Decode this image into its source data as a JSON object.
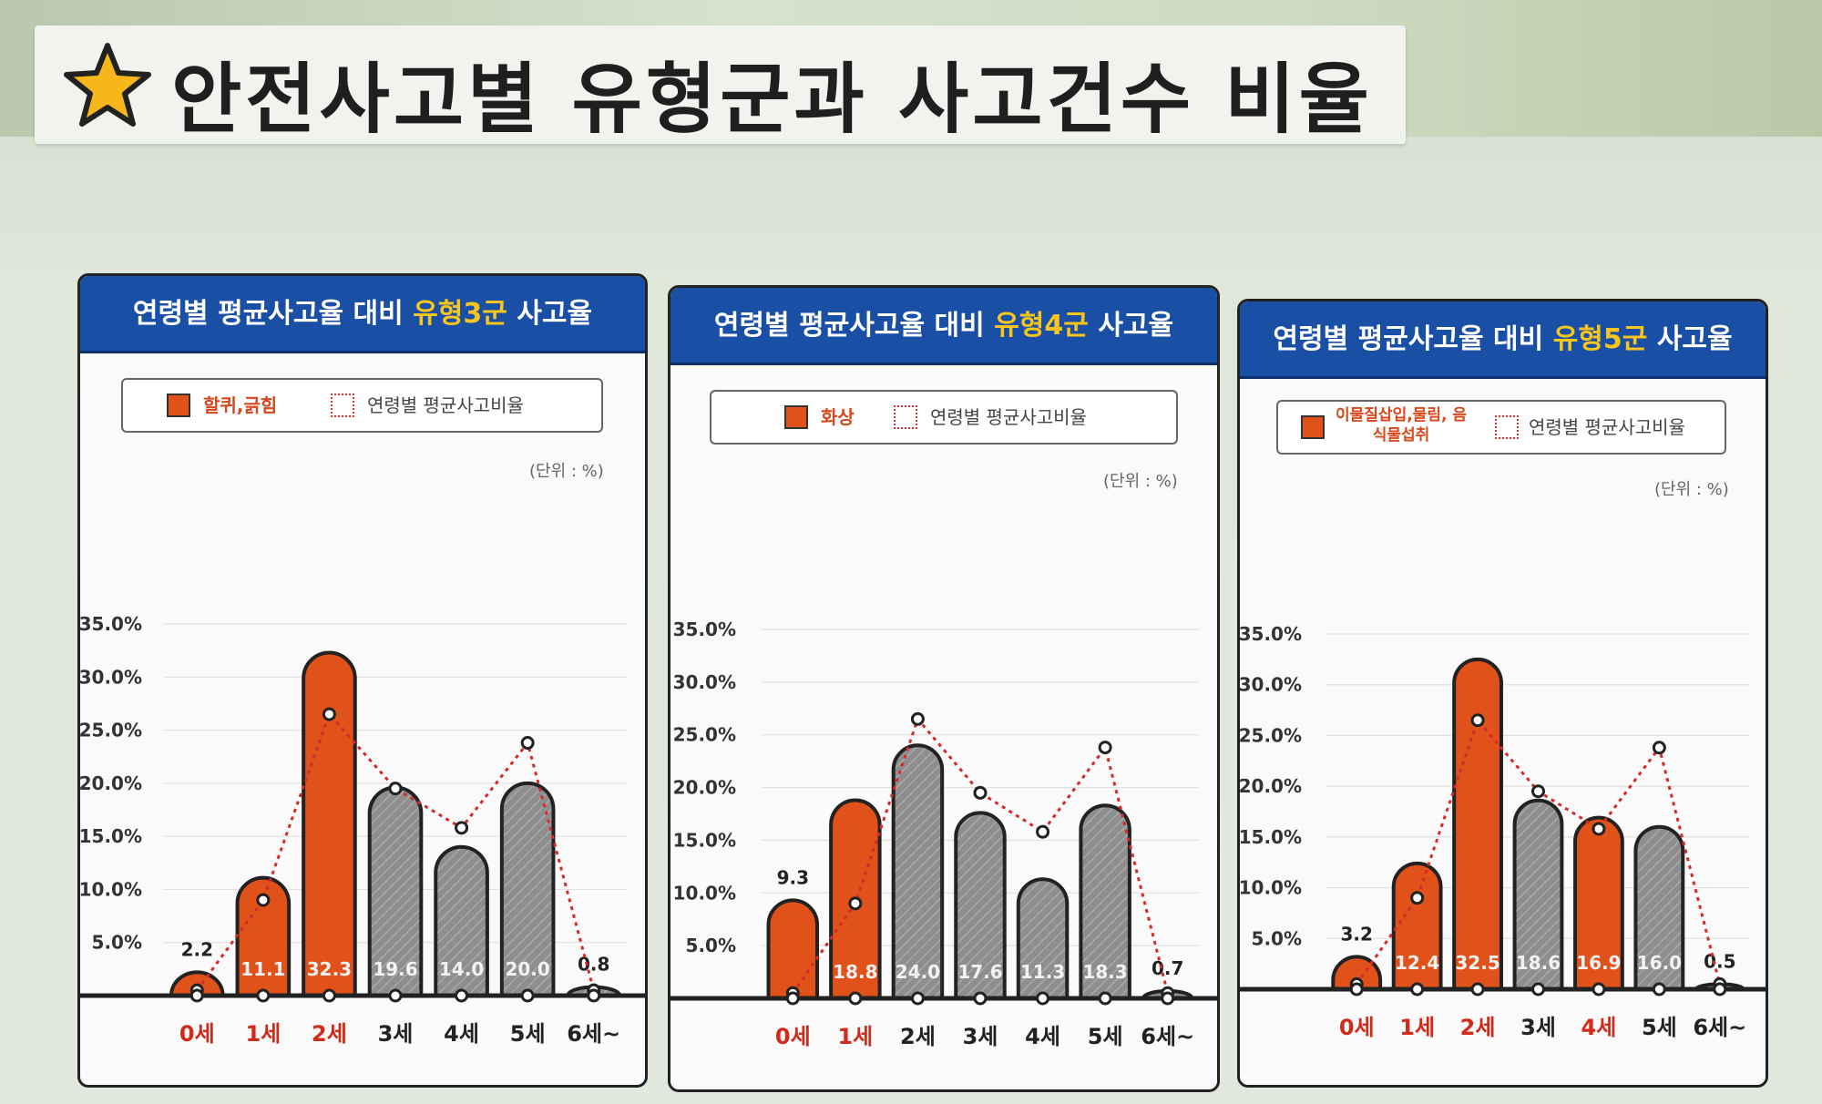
{
  "title": "안전사고별 유형군과 사고건수 비율",
  "colors": {
    "highlight_bar": "#e0521a",
    "other_bar": "#8e8e8e",
    "avg_line": "#d42a2a",
    "header": "#1a4fa6",
    "header_highlight": "#f8c51c"
  },
  "panels": [
    {
      "title_prefix": "연령별 평균사고율 대비 ",
      "title_highlight": "유형3군",
      "title_suffix": " 사고율",
      "legend_series": "할퀴,긁힘",
      "legend_avg": "연령별 평균사고비율",
      "unit": "(단위 : %)"
    },
    {
      "title_prefix": "연령별 평균사고율 대비 ",
      "title_highlight": "유형4군",
      "title_suffix": " 사고율",
      "legend_series": "화상",
      "legend_avg": "연령별 평균사고비율",
      "unit": "(단위 : %)"
    },
    {
      "title_prefix": "연령별 평균사고율 대비 ",
      "title_highlight": "유형5군",
      "title_suffix": " 사고율",
      "legend_series": "이물질삽입,물림, 음식물섭취",
      "legend_avg": "연령별 평균사고비율",
      "unit": "(단위 : %)"
    }
  ],
  "chart_data": [
    {
      "type": "bar",
      "categories": [
        "0세",
        "1세",
        "2세",
        "3세",
        "4세",
        "5세",
        "6세~"
      ],
      "series": [
        {
          "name": "할퀴,긁힘",
          "values": [
            2.2,
            11.1,
            32.3,
            19.6,
            14.0,
            20.0,
            0.8
          ]
        },
        {
          "name": "연령별 평균사고비율",
          "values": [
            0.5,
            9.0,
            26.5,
            19.5,
            15.8,
            23.8,
            0.5
          ]
        }
      ],
      "highlighted_categories": [
        "0세",
        "1세",
        "2세"
      ],
      "y_tick_labels": [
        "5.0%",
        "10.0%",
        "15.0%",
        "20.0%",
        "25.0%",
        "30.0%",
        "35.0%"
      ],
      "ylim": [
        0,
        35
      ],
      "grid": true
    },
    {
      "type": "bar",
      "categories": [
        "0세",
        "1세",
        "2세",
        "3세",
        "4세",
        "5세",
        "6세~"
      ],
      "series": [
        {
          "name": "화상",
          "values": [
            9.3,
            18.8,
            24.0,
            17.6,
            11.3,
            18.3,
            0.7
          ]
        },
        {
          "name": "연령별 평균사고비율",
          "values": [
            0.5,
            9.0,
            26.5,
            19.5,
            15.8,
            23.8,
            0.5
          ]
        }
      ],
      "highlighted_categories": [
        "0세",
        "1세"
      ],
      "y_tick_labels": [
        "5.0%",
        "10.0%",
        "15.0%",
        "20.0%",
        "25.0%",
        "30.0%",
        "35.0%"
      ],
      "ylim": [
        0,
        35
      ],
      "grid": true
    },
    {
      "type": "bar",
      "categories": [
        "0세",
        "1세",
        "2세",
        "3세",
        "4세",
        "5세",
        "6세~"
      ],
      "series": [
        {
          "name": "이물질삽입,물림, 음식물섭취",
          "values": [
            3.2,
            12.4,
            32.5,
            18.6,
            16.9,
            16.0,
            0.5
          ]
        },
        {
          "name": "연령별 평균사고비율",
          "values": [
            0.5,
            9.0,
            26.5,
            19.5,
            15.8,
            23.8,
            0.5
          ]
        }
      ],
      "highlighted_categories": [
        "0세",
        "1세",
        "2세",
        "4세"
      ],
      "y_tick_labels": [
        "5.0%",
        "10.0%",
        "15.0%",
        "20.0%",
        "25.0%",
        "30.0%",
        "35.0%"
      ],
      "ylim": [
        0,
        35
      ],
      "grid": true
    }
  ]
}
